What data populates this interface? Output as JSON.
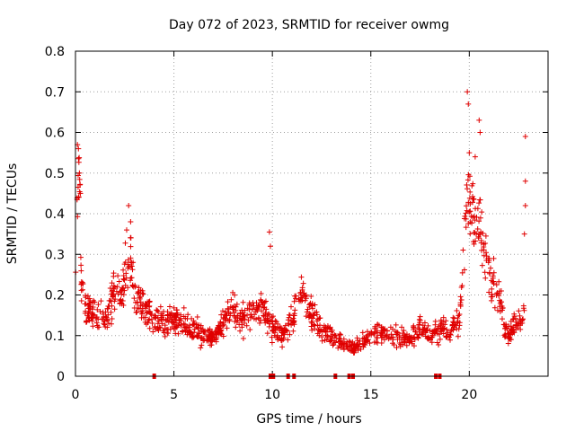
{
  "chart_data": {
    "type": "scatter",
    "title": "Day 072 of 2023, SRMTID for receiver owmg",
    "xlabel": "GPS time / hours",
    "ylabel": "SRMTID / TECUs",
    "xlim": [
      0,
      24
    ],
    "ylim": [
      0,
      0.8
    ],
    "xticks": [
      "0",
      "5",
      "10",
      "15",
      "20"
    ],
    "yticks": [
      "0",
      "0.1",
      "0.2",
      "0.3",
      "0.4",
      "0.5",
      "0.6",
      "0.7",
      "0.8"
    ],
    "grid": true,
    "marker": "plus",
    "color": "#e00000",
    "series": [
      {
        "name": "SRMTID",
        "profile": [
          [
            0.0,
            0.28
          ],
          [
            0.05,
            0.35
          ],
          [
            0.1,
            0.45
          ],
          [
            0.2,
            0.5
          ],
          [
            0.3,
            0.22
          ],
          [
            0.5,
            0.17
          ],
          [
            1.0,
            0.15
          ],
          [
            1.5,
            0.14
          ],
          [
            1.8,
            0.17
          ],
          [
            2.0,
            0.22
          ],
          [
            2.3,
            0.2
          ],
          [
            2.6,
            0.26
          ],
          [
            2.8,
            0.3
          ],
          [
            3.0,
            0.2
          ],
          [
            3.5,
            0.17
          ],
          [
            4.0,
            0.14
          ],
          [
            4.5,
            0.13
          ],
          [
            5.0,
            0.14
          ],
          [
            5.5,
            0.13
          ],
          [
            6.0,
            0.12
          ],
          [
            6.5,
            0.1
          ],
          [
            7.0,
            0.09
          ],
          [
            7.5,
            0.13
          ],
          [
            8.0,
            0.17
          ],
          [
            8.5,
            0.14
          ],
          [
            9.0,
            0.15
          ],
          [
            9.5,
            0.17
          ],
          [
            10.0,
            0.12
          ],
          [
            10.5,
            0.1
          ],
          [
            11.0,
            0.14
          ],
          [
            11.5,
            0.2
          ],
          [
            12.0,
            0.15
          ],
          [
            12.5,
            0.12
          ],
          [
            13.0,
            0.1
          ],
          [
            13.5,
            0.08
          ],
          [
            14.0,
            0.07
          ],
          [
            14.5,
            0.08
          ],
          [
            15.0,
            0.1
          ],
          [
            15.5,
            0.11
          ],
          [
            16.0,
            0.1
          ],
          [
            16.5,
            0.1
          ],
          [
            17.0,
            0.09
          ],
          [
            17.5,
            0.12
          ],
          [
            18.0,
            0.1
          ],
          [
            18.5,
            0.12
          ],
          [
            19.0,
            0.11
          ],
          [
            19.5,
            0.14
          ],
          [
            19.9,
            0.45
          ],
          [
            20.1,
            0.38
          ],
          [
            20.4,
            0.4
          ],
          [
            20.7,
            0.32
          ],
          [
            21.0,
            0.25
          ],
          [
            21.3,
            0.22
          ],
          [
            21.6,
            0.18
          ],
          [
            21.8,
            0.12
          ],
          [
            22.0,
            0.1
          ],
          [
            22.3,
            0.13
          ],
          [
            22.6,
            0.13
          ],
          [
            22.8,
            0.15
          ]
        ],
        "spread": 0.18,
        "point_count": 1300,
        "peaks": [
          [
            0.1,
            0.57
          ],
          [
            0.15,
            0.56
          ],
          [
            0.2,
            0.5
          ],
          [
            0.25,
            0.45
          ],
          [
            2.6,
            0.36
          ],
          [
            2.7,
            0.42
          ],
          [
            2.8,
            0.38
          ],
          [
            9.85,
            0.355
          ],
          [
            9.9,
            0.32
          ],
          [
            19.9,
            0.7
          ],
          [
            19.95,
            0.67
          ],
          [
            20.0,
            0.55
          ],
          [
            20.5,
            0.63
          ],
          [
            20.55,
            0.6
          ],
          [
            20.3,
            0.54
          ],
          [
            22.85,
            0.59
          ],
          [
            22.85,
            0.48
          ],
          [
            22.85,
            0.42
          ],
          [
            22.8,
            0.35
          ]
        ]
      }
    ],
    "gap_markers_hours": [
      4.0,
      9.9,
      10.05,
      10.8,
      11.1,
      13.2,
      13.9,
      14.1,
      18.3,
      18.5
    ]
  }
}
